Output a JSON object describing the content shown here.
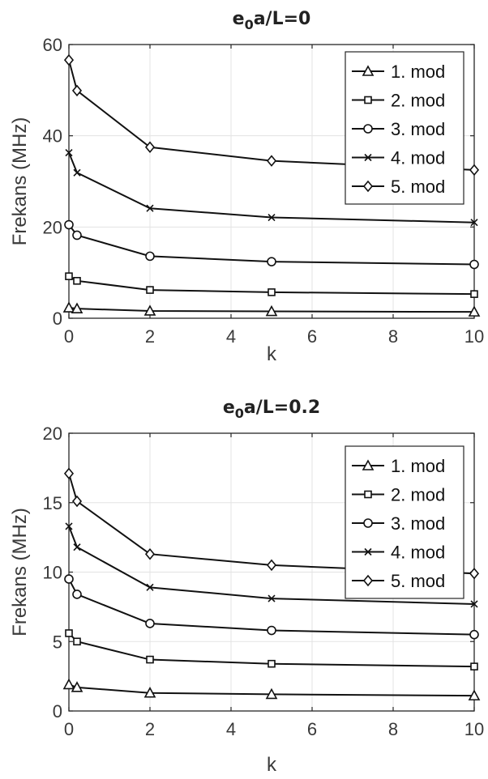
{
  "chart_data": [
    {
      "type": "line",
      "title_main": "e",
      "title_sub": "0",
      "title_rest": "a/L=0",
      "xlabel": "k",
      "ylabel": "Frekans (MHz)",
      "xlim": [
        0,
        10
      ],
      "ylim": [
        0,
        60
      ],
      "xticks": [
        "0",
        "2",
        "4",
        "6",
        "8",
        "10"
      ],
      "yticks": [
        "0",
        "20",
        "40",
        "60"
      ],
      "grid": true,
      "legend_position": "top-right",
      "x": [
        0,
        0.2,
        2,
        5,
        10
      ],
      "series": [
        {
          "name": "1. mod",
          "marker": "triangle",
          "values": [
            2.3,
            2.1,
            1.6,
            1.5,
            1.4
          ]
        },
        {
          "name": "2. mod",
          "marker": "square",
          "values": [
            9.2,
            8.2,
            6.2,
            5.7,
            5.3
          ]
        },
        {
          "name": "3. mod",
          "marker": "circle",
          "values": [
            20.5,
            18.2,
            13.6,
            12.4,
            11.8
          ]
        },
        {
          "name": "4. mod",
          "marker": "x",
          "values": [
            36.3,
            31.9,
            24.1,
            22.1,
            21.0
          ]
        },
        {
          "name": "5. mod",
          "marker": "diamond",
          "values": [
            56.6,
            49.9,
            37.5,
            34.5,
            32.5
          ]
        }
      ]
    },
    {
      "type": "line",
      "title_main": "e",
      "title_sub": "0",
      "title_rest": "a/L=0.2",
      "xlabel": "k",
      "ylabel": "Frekans (MHz)",
      "xlim": [
        0,
        10
      ],
      "ylim": [
        0,
        20
      ],
      "xticks": [
        "0",
        "2",
        "4",
        "6",
        "8",
        "10"
      ],
      "yticks": [
        "0",
        "5",
        "10",
        "15",
        "20"
      ],
      "grid": true,
      "legend_position": "top-right",
      "x": [
        0,
        0.2,
        2,
        5,
        10
      ],
      "series": [
        {
          "name": "1. mod",
          "marker": "triangle",
          "values": [
            1.9,
            1.7,
            1.3,
            1.2,
            1.1
          ]
        },
        {
          "name": "2. mod",
          "marker": "square",
          "values": [
            5.6,
            5.0,
            3.7,
            3.4,
            3.2
          ]
        },
        {
          "name": "3. mod",
          "marker": "circle",
          "values": [
            9.5,
            8.4,
            6.3,
            5.8,
            5.5
          ]
        },
        {
          "name": "4. mod",
          "marker": "x",
          "values": [
            13.3,
            11.8,
            8.9,
            8.1,
            7.7
          ]
        },
        {
          "name": "5. mod",
          "marker": "diamond",
          "values": [
            17.1,
            15.1,
            11.3,
            10.5,
            9.9
          ]
        }
      ]
    }
  ]
}
